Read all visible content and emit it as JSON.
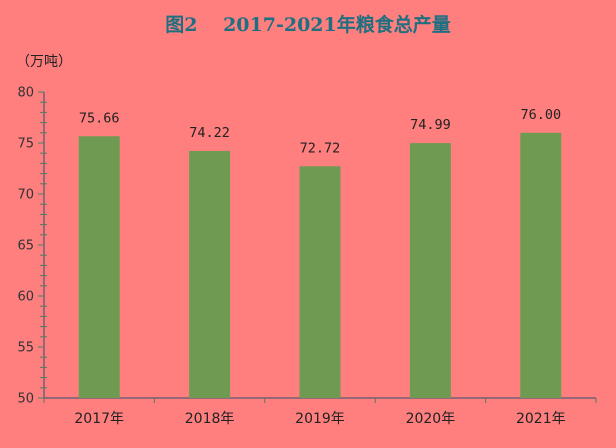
{
  "chart_data": {
    "type": "bar",
    "title": "图2　 2017-2021年粮食总产量",
    "unit_label": "（万吨）",
    "categories": [
      "2017年",
      "2018年",
      "2019年",
      "2020年",
      "2021年"
    ],
    "values": [
      75.66,
      74.22,
      72.72,
      74.99,
      76.0
    ],
    "value_labels": [
      "75.66",
      "74.22",
      "72.72",
      "74.99",
      "76.00"
    ],
    "ylim": [
      50,
      80
    ],
    "yticks": [
      "50",
      "55",
      "60",
      "65",
      "70",
      "75",
      "80"
    ],
    "grid": false,
    "colors": {
      "background": "#ff7f7f",
      "bar": "#6e9a52"
    }
  }
}
